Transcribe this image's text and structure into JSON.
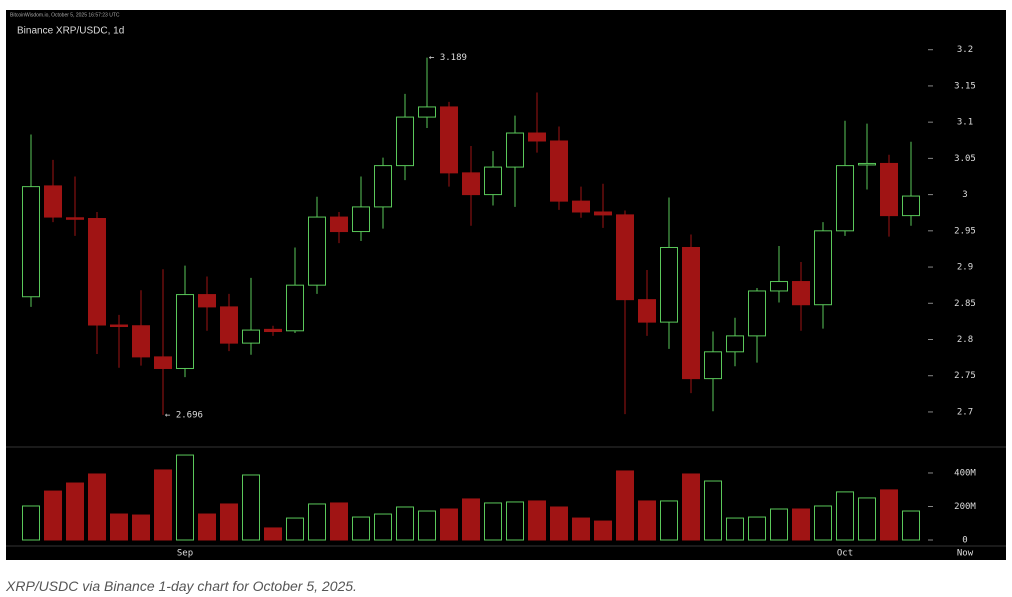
{
  "header": {
    "source": "BitcoinWisdom.io, October 5, 2025 16:57:23 UTC"
  },
  "chart_data": {
    "type": "candlestick",
    "title": "Binance XRP/USDC, 1d",
    "categories": [
      null,
      null,
      null,
      null,
      null,
      null,
      null,
      "Sep",
      null,
      null,
      null,
      null,
      null,
      null,
      null,
      null,
      null,
      null,
      null,
      null,
      null,
      null,
      null,
      null,
      null,
      null,
      null,
      null,
      null,
      null,
      null,
      null,
      null,
      null,
      null,
      null,
      null,
      "Oct",
      null,
      null,
      null
    ],
    "now_label": "Now",
    "open": [
      2.859,
      3.012,
      2.968,
      2.967,
      2.82,
      2.819,
      2.776,
      2.76,
      2.862,
      2.845,
      2.795,
      2.814,
      2.812,
      2.875,
      2.969,
      2.949,
      2.983,
      3.04,
      3.107,
      3.121,
      3.03,
      3.0,
      3.038,
      3.085,
      3.074,
      2.991,
      2.976,
      2.972,
      2.855,
      2.824,
      2.927,
      2.746,
      2.783,
      2.805,
      2.867,
      2.88,
      2.848,
      2.95,
      3.041,
      3.043,
      2.971
    ],
    "high": [
      3.083,
      3.048,
      3.025,
      2.976,
      2.834,
      2.868,
      2.897,
      2.902,
      2.887,
      2.863,
      2.885,
      2.819,
      2.927,
      2.997,
      2.976,
      3.025,
      3.051,
      3.139,
      3.189,
      3.128,
      3.067,
      3.06,
      3.109,
      3.141,
      3.094,
      3.011,
      3.015,
      2.978,
      2.896,
      2.996,
      2.945,
      2.811,
      2.83,
      2.871,
      2.929,
      2.907,
      2.962,
      3.102,
      3.098,
      3.055,
      3.073
    ],
    "low": [
      2.845,
      2.962,
      2.943,
      2.78,
      2.761,
      2.764,
      2.696,
      2.748,
      2.812,
      2.784,
      2.779,
      2.805,
      2.809,
      2.863,
      2.933,
      2.936,
      2.953,
      3.02,
      3.092,
      3.011,
      2.957,
      2.985,
      2.983,
      3.058,
      2.979,
      2.968,
      2.954,
      2.697,
      2.805,
      2.787,
      2.726,
      2.701,
      2.763,
      2.768,
      2.851,
      2.812,
      2.815,
      2.943,
      3.007,
      2.942,
      2.957
    ],
    "close": [
      3.011,
      2.969,
      2.967,
      2.82,
      2.819,
      2.776,
      2.76,
      2.862,
      2.845,
      2.795,
      2.813,
      2.811,
      2.875,
      2.969,
      2.949,
      2.983,
      3.04,
      3.107,
      3.121,
      3.03,
      3.0,
      3.038,
      3.085,
      3.074,
      2.991,
      2.976,
      2.972,
      2.855,
      2.824,
      2.927,
      2.746,
      2.783,
      2.805,
      2.867,
      2.88,
      2.848,
      2.95,
      3.04,
      3.043,
      2.971,
      2.998
    ],
    "volume": [
      203000000,
      292000000,
      340000000,
      394000000,
      155000000,
      149000000,
      418000000,
      507000000,
      155000000,
      215000000,
      388000000,
      72000000,
      131000000,
      215000000,
      221000000,
      137000000,
      155000000,
      197000000,
      173000000,
      185000000,
      245000000,
      221000000,
      227000000,
      233000000,
      197000000,
      131000000,
      113000000,
      412000000,
      233000000,
      233000000,
      394000000,
      352000000,
      131000000,
      137000000,
      185000000,
      185000000,
      203000000,
      287000000,
      251000000,
      299000000,
      173000000
    ],
    "up_color": "#5ac85a",
    "down_color": "#a01414",
    "ylim": [
      2.653,
      3.241
    ],
    "yticks": [
      2.7,
      2.75,
      2.8,
      2.85,
      2.9,
      2.95,
      3,
      3.05,
      3.1,
      3.15,
      3.2
    ],
    "volume_ylim": [
      0,
      549000000
    ],
    "volume_yticks": [
      0,
      {
        "value": 200000000,
        "label": "200M"
      },
      {
        "value": 400000000,
        "label": "400M"
      }
    ],
    "annotations": [
      {
        "value": 3.189,
        "label": "← 3.189",
        "field": "high"
      },
      {
        "value": 2.696,
        "label": "← 2.696",
        "field": "low"
      }
    ]
  },
  "caption": "XRP/USDC via Binance 1-day chart for October 5, 2025."
}
